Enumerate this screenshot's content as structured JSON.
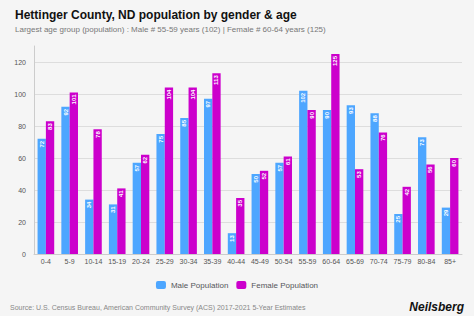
{
  "chart_data": {
    "type": "bar",
    "title": "Hettinger County, ND population by gender & age",
    "subtitle": "Largest age group (population) : Male # 55-59 years (102) | Female # 60-64 years (125)",
    "annotations": [
      "Source: U.S. Census Bureau, American Community Survey (ACS) 2017-2021 5-Year Estimates",
      "Neilsberg"
    ],
    "categories": [
      "0-4",
      "5-9",
      "10-14",
      "15-19",
      "20-24",
      "25-29",
      "30-34",
      "35-39",
      "40-44",
      "45-49",
      "50-54",
      "55-59",
      "60-64",
      "65-69",
      "70-74",
      "75-79",
      "80-84",
      "85+"
    ],
    "series": [
      {
        "name": "Male Population",
        "color": "#4da6ff",
        "values": [
          72,
          92,
          34,
          31,
          57,
          75,
          85,
          97,
          13,
          50,
          57,
          102,
          90,
          93,
          88,
          25,
          73,
          29
        ]
      },
      {
        "name": "Female Population",
        "color": "#cc00cc",
        "values": [
          83,
          101,
          78,
          41,
          62,
          104,
          104,
          113,
          35,
          52,
          61,
          90,
          125,
          53,
          76,
          42,
          56,
          60
        ]
      }
    ],
    "ylim": [
      0,
      130
    ],
    "yticks": [
      0,
      20,
      40,
      60,
      80,
      100,
      120
    ],
    "grid": true,
    "legend": "bottom",
    "data_labels": true
  }
}
